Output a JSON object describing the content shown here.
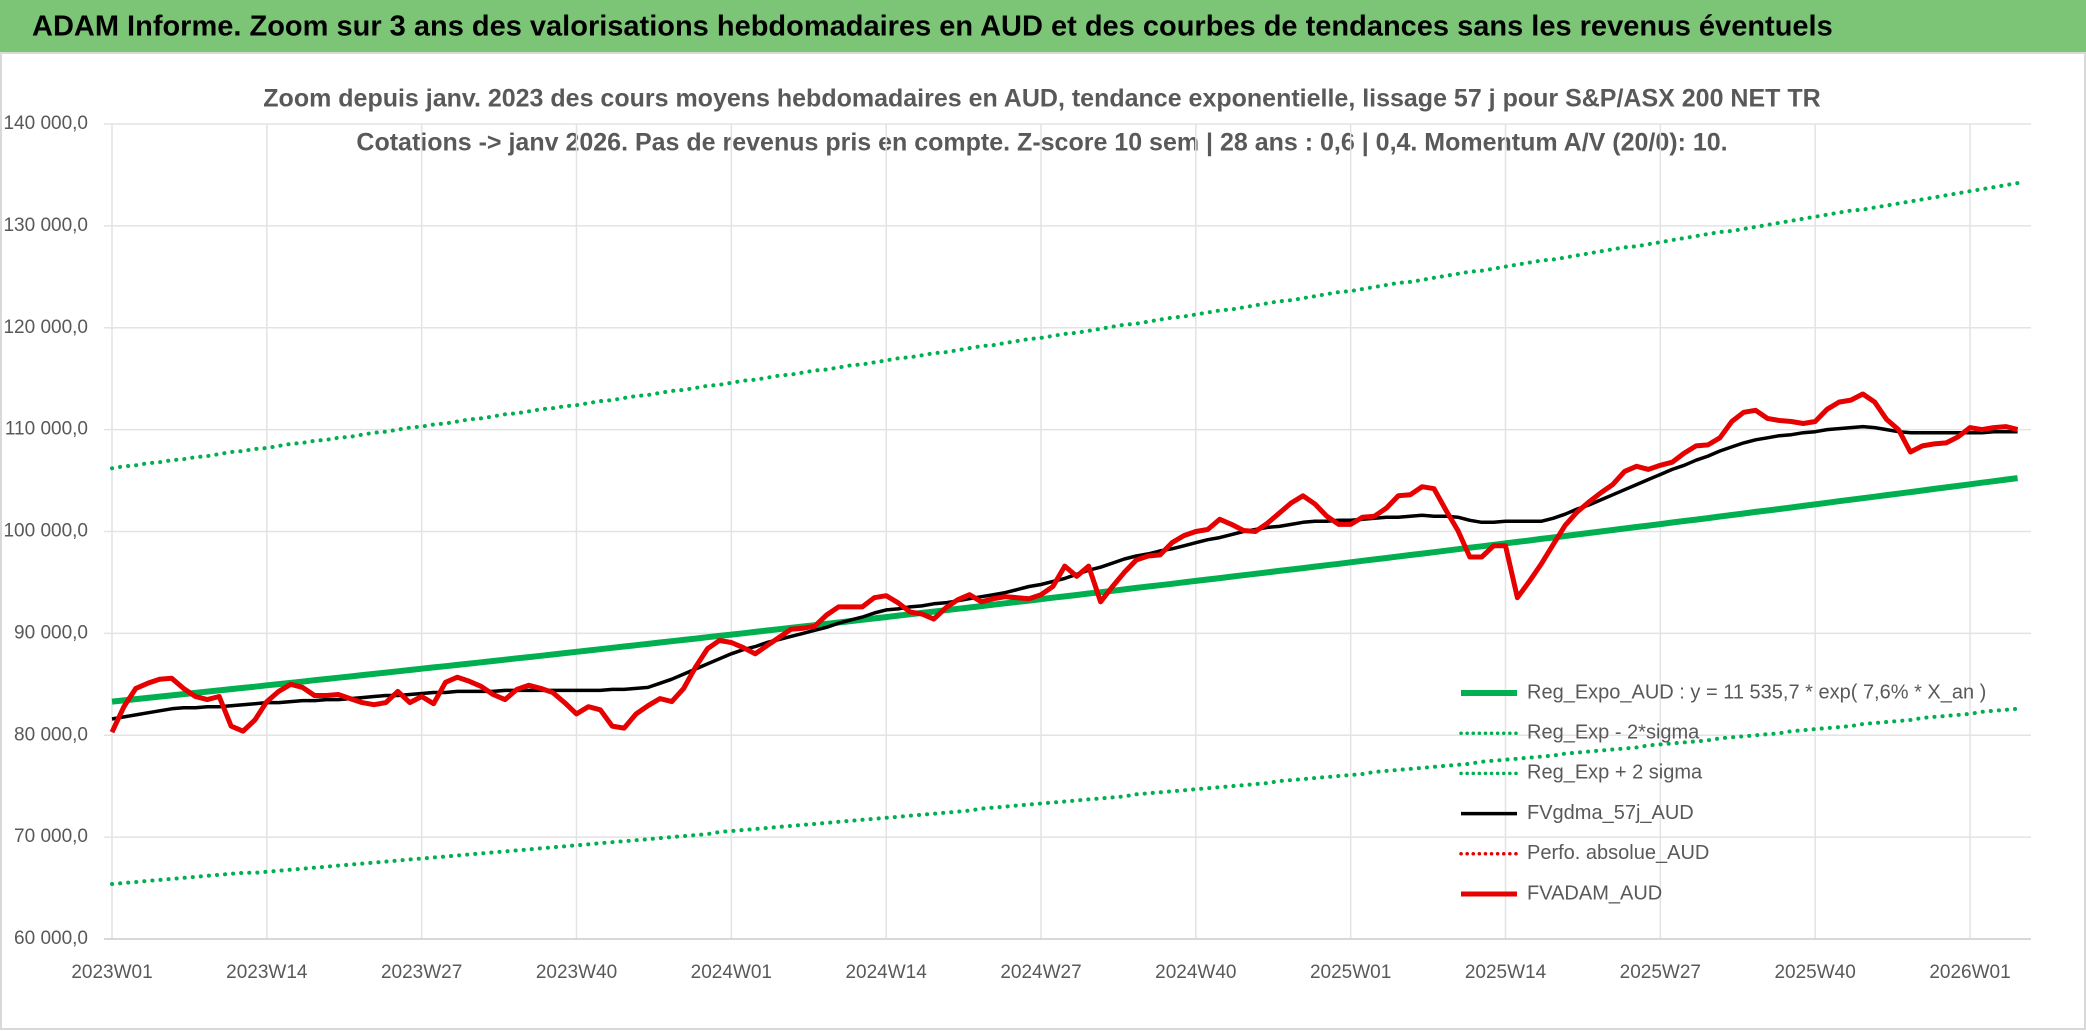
{
  "chart_data": {
    "type": "line",
    "title": "ADAM Informe. Zoom sur 3 ans des valorisations hebdomadaires en AUD et des courbes de tendances sans les revenus éventuels",
    "subtitle": [
      "Zoom depuis janv. 2023 des cours moyens hebdomadaires en AUD, tendance exponentielle, lissage 57 j pour S&P/ASX 200 NET TR",
      "Cotations -> janv 2026. Pas de revenus pris en compte. Z-score 10 sem | 28 ans : 0,6 | 0,4. Momentum A/V (20/0): 10."
    ],
    "categories": [
      "2023W01",
      null,
      null,
      null,
      null,
      null,
      null,
      null,
      null,
      null,
      null,
      null,
      null,
      "2023W14",
      null,
      null,
      null,
      null,
      null,
      null,
      null,
      null,
      null,
      null,
      null,
      null,
      "2023W27",
      null,
      null,
      null,
      null,
      null,
      null,
      null,
      null,
      null,
      null,
      null,
      null,
      "2023W40",
      null,
      null,
      null,
      null,
      null,
      null,
      null,
      null,
      null,
      null,
      null,
      null,
      "2024W01",
      null,
      null,
      null,
      null,
      null,
      null,
      null,
      null,
      null,
      null,
      null,
      null,
      "2024W14",
      null,
      null,
      null,
      null,
      null,
      null,
      null,
      null,
      null,
      null,
      null,
      null,
      "2024W27",
      null,
      null,
      null,
      null,
      null,
      null,
      null,
      null,
      null,
      null,
      null,
      null,
      "2024W40",
      null,
      null,
      null,
      null,
      null,
      null,
      null,
      null,
      null,
      null,
      null,
      null,
      "2025W01",
      null,
      null,
      null,
      null,
      null,
      null,
      null,
      null,
      null,
      null,
      null,
      null,
      "2025W14",
      null,
      null,
      null,
      null,
      null,
      null,
      null,
      null,
      null,
      null,
      null,
      null,
      "2025W27",
      null,
      null,
      null,
      null,
      null,
      null,
      null,
      null,
      null,
      null,
      null,
      null,
      "2025W40",
      null,
      null,
      null,
      null,
      null,
      null,
      null,
      null,
      null,
      null,
      null,
      null,
      "2026W01",
      null,
      null,
      null,
      null
    ],
    "ylim": [
      60000,
      140000
    ],
    "yticks": [
      {
        "value": 60000,
        "label": "60 000,0"
      },
      {
        "value": 70000,
        "label": "70 000,0"
      },
      {
        "value": 80000,
        "label": "80 000,0"
      },
      {
        "value": 90000,
        "label": "90 000,0"
      },
      {
        "value": 100000,
        "label": "100 000,0"
      },
      {
        "value": 110000,
        "label": "110 000,0"
      },
      {
        "value": 120000,
        "label": "120 000,0"
      },
      {
        "value": 130000,
        "label": "130 000,0"
      },
      {
        "value": 140000,
        "label": "140 000,0"
      }
    ],
    "grid": true,
    "legend": "right",
    "series": [
      {
        "name": "Reg_Expo_AUD : y = 11 535,7 * exp( 7,6% *  X_an )",
        "color": "#00b050",
        "width": 6,
        "dash": false,
        "values": [
          83300,
          83420,
          83550,
          83670,
          83790,
          83910,
          84040,
          84160,
          84280,
          84400,
          84530,
          84650,
          84770,
          84900,
          85020,
          85150,
          85270,
          85400,
          85520,
          85650,
          85770,
          85900,
          86020,
          86150,
          86280,
          86400,
          86530,
          86660,
          86780,
          86910,
          87030,
          87160,
          87290,
          87420,
          87550,
          87670,
          87800,
          87930,
          88060,
          88190,
          88320,
          88450,
          88580,
          88710,
          88840,
          88970,
          89100,
          89230,
          89360,
          89490,
          89620,
          89750,
          89880,
          90010,
          90140,
          90280,
          90410,
          90540,
          90670,
          90800,
          90930,
          91070,
          91200,
          91330,
          91470,
          91600,
          91740,
          91870,
          92010,
          92140,
          92270,
          92410,
          92540,
          92680,
          92820,
          92950,
          93090,
          93220,
          93360,
          93500,
          93630,
          93770,
          93910,
          94040,
          94180,
          94320,
          94460,
          94600,
          94730,
          94870,
          95010,
          95150,
          95290,
          95430,
          95570,
          95710,
          95850,
          95990,
          96130,
          96270,
          96410,
          96550,
          96690,
          96830,
          96980,
          97120,
          97260,
          97400,
          97550,
          97690,
          97830,
          97970,
          98120,
          98260,
          98410,
          98550,
          98690,
          98840,
          98980,
          99120,
          99270,
          99410,
          99560,
          99710,
          99850,
          100000,
          100150,
          100290,
          100440,
          100580,
          100730,
          100880,
          101030,
          101170,
          101320,
          101470,
          101620,
          101770,
          101920,
          102060,
          102210,
          102360,
          102510,
          102660,
          102820,
          102970,
          103120,
          103270,
          103420,
          103570,
          103720,
          103870,
          104020,
          104180,
          104330,
          104480,
          104630,
          104790,
          104940,
          105090,
          105240
        ]
      },
      {
        "name": "Reg_Exp - 2*sigma",
        "color": "#00b050",
        "width": 4,
        "dash": true,
        "values": [
          65400,
          65500,
          65600,
          65700,
          65800,
          65900,
          66000,
          66100,
          66200,
          66300,
          66400,
          66500,
          66500,
          66600,
          66700,
          66800,
          66900,
          67000,
          67100,
          67200,
          67300,
          67400,
          67500,
          67600,
          67700,
          67800,
          67900,
          68000,
          68100,
          68200,
          68300,
          68400,
          68500,
          68600,
          68700,
          68800,
          68900,
          69000,
          69100,
          69200,
          69300,
          69400,
          69500,
          69600,
          69700,
          69800,
          69900,
          70000,
          70100,
          70200,
          70300,
          70500,
          70600,
          70700,
          70800,
          70900,
          71000,
          71100,
          71200,
          71300,
          71400,
          71500,
          71600,
          71700,
          71800,
          71900,
          72000,
          72100,
          72200,
          72300,
          72400,
          72500,
          72600,
          72800,
          72900,
          73000,
          73100,
          73200,
          73300,
          73400,
          73500,
          73600,
          73700,
          73800,
          73900,
          74000,
          74200,
          74300,
          74400,
          74500,
          74600,
          74700,
          74800,
          74900,
          75000,
          75100,
          75200,
          75300,
          75500,
          75600,
          75700,
          75800,
          75900,
          76000,
          76100,
          76200,
          76400,
          76500,
          76600,
          76700,
          76800,
          76900,
          77000,
          77100,
          77200,
          77400,
          77500,
          77600,
          77700,
          77800,
          77900,
          78000,
          78200,
          78300,
          78400,
          78500,
          78600,
          78700,
          78800,
          79000,
          79100,
          79200,
          79300,
          79400,
          79500,
          79700,
          79800,
          79900,
          80000,
          80100,
          80200,
          80400,
          80500,
          80600,
          80700,
          80800,
          80900,
          81100,
          81200,
          81300,
          81400,
          81500,
          81700,
          81800,
          81900,
          82000,
          82100,
          82300,
          82400,
          82500,
          82600
        ]
      },
      {
        "name": "Reg_Exp + 2 sigma",
        "color": "#00b050",
        "width": 4,
        "dash": true,
        "values": [
          106200,
          106400,
          106500,
          106700,
          106800,
          107000,
          107100,
          107300,
          107400,
          107600,
          107800,
          107900,
          108100,
          108200,
          108400,
          108600,
          108700,
          108900,
          109000,
          109200,
          109300,
          109500,
          109700,
          109800,
          110000,
          110200,
          110300,
          110500,
          110600,
          110800,
          111000,
          111100,
          111300,
          111500,
          111600,
          111800,
          112000,
          112100,
          112300,
          112400,
          112600,
          112800,
          112900,
          113100,
          113300,
          113400,
          113600,
          113800,
          113900,
          114100,
          114300,
          114400,
          114600,
          114800,
          114900,
          115100,
          115300,
          115400,
          115600,
          115800,
          115900,
          116100,
          116300,
          116400,
          116600,
          116800,
          117000,
          117100,
          117300,
          117500,
          117600,
          117800,
          118000,
          118200,
          118300,
          118500,
          118700,
          118900,
          119000,
          119200,
          119400,
          119500,
          119700,
          119900,
          120100,
          120300,
          120400,
          120600,
          120800,
          121000,
          121100,
          121300,
          121500,
          121700,
          121800,
          122000,
          122200,
          122400,
          122600,
          122700,
          122900,
          123100,
          123300,
          123500,
          123600,
          123800,
          124000,
          124200,
          124400,
          124500,
          124700,
          124900,
          125100,
          125300,
          125500,
          125600,
          125800,
          126000,
          126200,
          126400,
          126600,
          126700,
          126900,
          127100,
          127300,
          127500,
          127700,
          127900,
          128000,
          128200,
          128400,
          128600,
          128800,
          129000,
          129200,
          129400,
          129500,
          129700,
          129900,
          130100,
          130300,
          130500,
          130700,
          130900,
          131100,
          131300,
          131500,
          131600,
          131800,
          132000,
          132200,
          132400,
          132600,
          132800,
          133000,
          133200,
          133400,
          133600,
          133800,
          134000,
          134200
        ]
      },
      {
        "name": "FVgdma_57j_AUD",
        "color": "#000000",
        "width": 3.5,
        "dash": false,
        "values": [
          81600,
          81800,
          82000,
          82200,
          82400,
          82600,
          82700,
          82700,
          82800,
          82800,
          82900,
          83000,
          83100,
          83200,
          83200,
          83300,
          83400,
          83400,
          83500,
          83500,
          83600,
          83700,
          83800,
          83900,
          83900,
          84000,
          84100,
          84200,
          84200,
          84300,
          84300,
          84300,
          84300,
          84400,
          84400,
          84400,
          84400,
          84400,
          84400,
          84400,
          84400,
          84400,
          84500,
          84500,
          84600,
          84700,
          85100,
          85500,
          86000,
          86500,
          87000,
          87500,
          88000,
          88400,
          88700,
          89100,
          89400,
          89700,
          90000,
          90300,
          90600,
          91000,
          91300,
          91600,
          92000,
          92300,
          92400,
          92600,
          92700,
          92900,
          93000,
          93200,
          93400,
          93600,
          93800,
          94000,
          94300,
          94600,
          94800,
          95100,
          95400,
          95800,
          96200,
          96500,
          96900,
          97300,
          97600,
          97800,
          98100,
          98300,
          98600,
          98900,
          99200,
          99400,
          99700,
          100000,
          100200,
          100400,
          100500,
          100700,
          100900,
          101000,
          101000,
          101100,
          101100,
          101200,
          101300,
          101400,
          101400,
          101500,
          101600,
          101500,
          101500,
          101400,
          101100,
          100900,
          100900,
          101000,
          101000,
          101000,
          101000,
          101300,
          101700,
          102200,
          102600,
          103100,
          103600,
          104100,
          104600,
          105100,
          105600,
          106100,
          106500,
          107000,
          107400,
          107900,
          108300,
          108700,
          109000,
          109200,
          109400,
          109500,
          109700,
          109800,
          110000,
          110100,
          110200,
          110300,
          110200,
          110000,
          109800,
          109700,
          109700,
          109700,
          109700,
          109700,
          109700,
          109700,
          109800,
          109800,
          109800
        ]
      },
      {
        "name": "Perfo. absolue_AUD",
        "color": "#e60000",
        "width": 3,
        "dash": true
      },
      {
        "name": "FVADAM_AUD",
        "color": "#e60000",
        "width": 5,
        "dash": false,
        "values": [
          80300,
          82800,
          84600,
          85100,
          85500,
          85600,
          84600,
          83800,
          83500,
          83800,
          80900,
          80400,
          81500,
          83300,
          84300,
          85000,
          84700,
          83900,
          83900,
          84000,
          83600,
          83200,
          83000,
          83200,
          84300,
          83200,
          83800,
          83100,
          85200,
          85700,
          85300,
          84800,
          84000,
          83500,
          84500,
          84900,
          84600,
          84200,
          83200,
          82100,
          82800,
          82500,
          80900,
          80700,
          82100,
          82900,
          83600,
          83300,
          84600,
          86700,
          88500,
          89300,
          89100,
          88600,
          88000,
          88800,
          89600,
          90400,
          90500,
          90700,
          91800,
          92600,
          92600,
          92600,
          93500,
          93700,
          93000,
          92100,
          91900,
          91400,
          92500,
          93300,
          93800,
          93100,
          93400,
          93600,
          93500,
          93400,
          93800,
          94600,
          96600,
          95600,
          96600,
          93100,
          94600,
          96000,
          97200,
          97600,
          97700,
          98900,
          99600,
          100000,
          100200,
          101200,
          100700,
          100100,
          100000,
          100800,
          101800,
          102800,
          103500,
          102700,
          101500,
          100700,
          100700,
          101400,
          101500,
          102300,
          103500,
          103600,
          104400,
          104200,
          102100,
          100100,
          97500,
          97500,
          98600,
          98600,
          93500,
          95100,
          96800,
          98700,
          100600,
          101900,
          102900,
          103800,
          104600,
          105900,
          106400,
          106100,
          106500,
          106800,
          107700,
          108400,
          108500,
          109200,
          110800,
          111700,
          111900,
          111100,
          110900,
          110800,
          110600,
          110800,
          112000,
          112700,
          112900,
          113500,
          112700,
          111000,
          110000,
          107800,
          108400,
          108600,
          108700,
          109300,
          110200,
          110000,
          110200,
          110300,
          110000
        ]
      }
    ]
  }
}
